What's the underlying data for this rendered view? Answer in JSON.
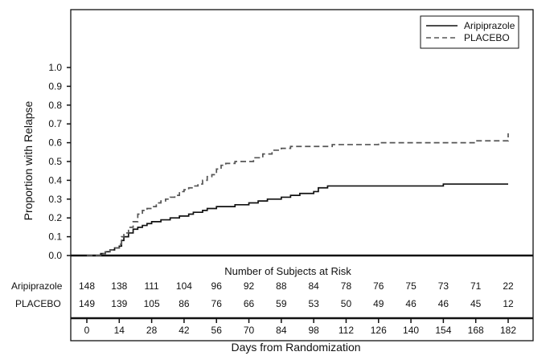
{
  "chart_data": {
    "type": "line",
    "xlabel": "Days from Randomization",
    "ylabel": "Proportion with Relapse",
    "xlim": [
      -8,
      182
    ],
    "ylim": [
      0.0,
      1.0
    ],
    "x_ticks": [
      0,
      14,
      28,
      42,
      56,
      70,
      84,
      98,
      112,
      126,
      140,
      154,
      168,
      182
    ],
    "x_tick_labels": [
      "0",
      "14",
      "28",
      "42",
      "56",
      "70",
      "84",
      "98",
      "112",
      "126",
      "140",
      "154",
      "168",
      "182"
    ],
    "y_ticks": [
      0.0,
      0.1,
      0.2,
      0.3,
      0.4,
      0.5,
      0.6,
      0.7,
      0.8,
      0.9,
      1.0
    ],
    "y_tick_labels": [
      "0.0",
      "0.1",
      "0.2",
      "0.3",
      "0.4",
      "0.5",
      "0.6",
      "0.7",
      "0.8",
      "0.9",
      "1.0"
    ],
    "grid": false,
    "legend_position": "top-right",
    "series": [
      {
        "name": "Aripiprazole",
        "line_style": "solid",
        "color": "#111111",
        "x": [
          0,
          4,
          6,
          8,
          10,
          12,
          14,
          15,
          16,
          18,
          20,
          22,
          24,
          26,
          28,
          30,
          32,
          34,
          36,
          38,
          40,
          42,
          44,
          46,
          48,
          50,
          52,
          56,
          60,
          64,
          70,
          74,
          78,
          84,
          88,
          92,
          98,
          100,
          104,
          112,
          126,
          140,
          154,
          168,
          182
        ],
        "y": [
          0.0,
          0.0,
          0.01,
          0.02,
          0.03,
          0.04,
          0.05,
          0.08,
          0.1,
          0.12,
          0.14,
          0.15,
          0.16,
          0.17,
          0.18,
          0.18,
          0.19,
          0.19,
          0.2,
          0.2,
          0.21,
          0.21,
          0.22,
          0.23,
          0.23,
          0.24,
          0.25,
          0.26,
          0.26,
          0.27,
          0.28,
          0.29,
          0.3,
          0.31,
          0.32,
          0.33,
          0.34,
          0.36,
          0.37,
          0.37,
          0.37,
          0.37,
          0.38,
          0.38,
          0.38
        ]
      },
      {
        "name": "PLACEBO",
        "line_style": "dashed",
        "color": "#555555",
        "x": [
          0,
          4,
          6,
          8,
          10,
          12,
          14,
          15,
          16,
          18,
          20,
          22,
          24,
          26,
          28,
          30,
          32,
          34,
          36,
          38,
          40,
          42,
          44,
          46,
          48,
          50,
          52,
          54,
          56,
          58,
          60,
          64,
          68,
          72,
          76,
          80,
          84,
          88,
          92,
          98,
          106,
          112,
          126,
          140,
          154,
          168,
          178,
          182
        ],
        "y": [
          0.0,
          0.0,
          0.01,
          0.02,
          0.03,
          0.04,
          0.06,
          0.1,
          0.12,
          0.15,
          0.18,
          0.22,
          0.24,
          0.25,
          0.26,
          0.28,
          0.29,
          0.3,
          0.31,
          0.32,
          0.34,
          0.35,
          0.36,
          0.37,
          0.38,
          0.4,
          0.42,
          0.43,
          0.46,
          0.48,
          0.49,
          0.5,
          0.5,
          0.52,
          0.54,
          0.56,
          0.57,
          0.58,
          0.58,
          0.58,
          0.59,
          0.59,
          0.6,
          0.6,
          0.6,
          0.61,
          0.61,
          0.65
        ]
      }
    ],
    "risk_table": {
      "title": "Number of Subjects at Risk",
      "rows": [
        {
          "label": "Aripiprazole",
          "values": [
            "148",
            "138",
            "111",
            "104",
            "96",
            "92",
            "88",
            "84",
            "78",
            "76",
            "75",
            "73",
            "71",
            "22"
          ]
        },
        {
          "label": "PLACEBO",
          "values": [
            "149",
            "139",
            "105",
            "86",
            "76",
            "66",
            "59",
            "53",
            "50",
            "49",
            "46",
            "46",
            "45",
            "12"
          ]
        }
      ]
    }
  }
}
